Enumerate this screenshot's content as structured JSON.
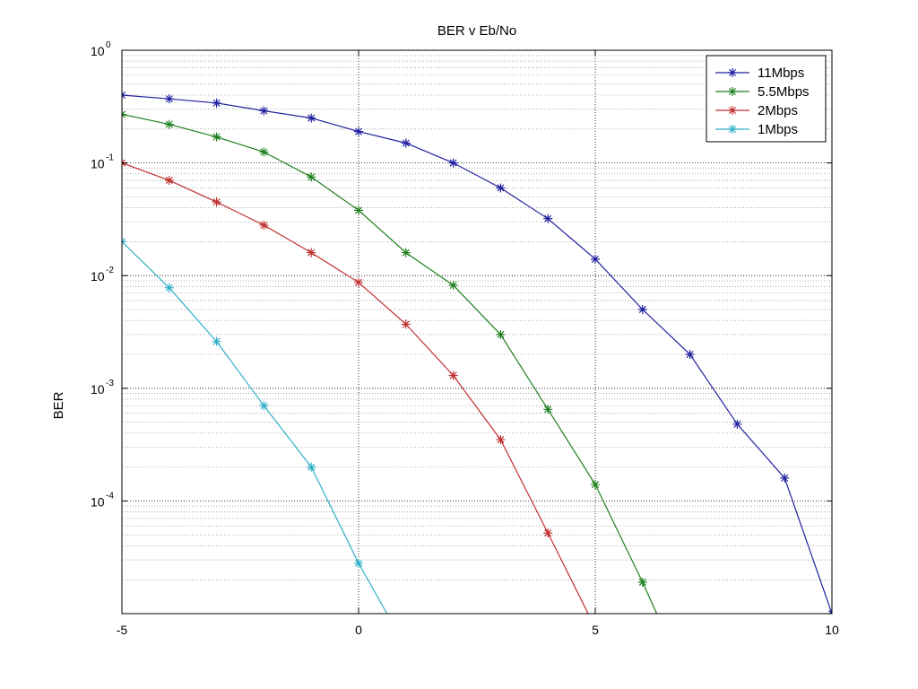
{
  "chart_data": {
    "type": "line",
    "title": "BER v Eb/No",
    "xlabel": "",
    "ylabel": "BER",
    "x_scale": "linear",
    "y_scale": "log",
    "xlim": [
      -5,
      10
    ],
    "ylim": [
      1e-05,
      1
    ],
    "xticks": [
      {
        "value": -5,
        "label": "-5"
      },
      {
        "value": 0,
        "label": "0"
      },
      {
        "value": 5,
        "label": "5"
      },
      {
        "value": 10,
        "label": "10"
      }
    ],
    "yticks": [
      {
        "value": 1,
        "base": "10",
        "exp": "0"
      },
      {
        "value": 0.1,
        "base": "10",
        "exp": "-1"
      },
      {
        "value": 0.01,
        "base": "10",
        "exp": "-2"
      },
      {
        "value": 0.001,
        "base": "10",
        "exp": "-3"
      },
      {
        "value": 0.0001,
        "base": "10",
        "exp": "-4"
      }
    ],
    "grid": true,
    "legend_position": "top-right",
    "series": [
      {
        "name": "11Mbps",
        "color": "#2020a0",
        "x": [
          -5,
          -4,
          -3,
          -2,
          -1,
          0,
          1,
          2,
          3,
          4,
          5,
          6,
          7,
          8,
          9,
          10
        ],
        "y": [
          0.4,
          0.37,
          0.34,
          0.29,
          0.25,
          0.19,
          0.15,
          0.1,
          0.06,
          0.032,
          0.014,
          0.005,
          0.002,
          0.00048,
          0.00016,
          1e-05
        ]
      },
      {
        "name": "5.5Mbps",
        "color": "#208020",
        "x": [
          -5,
          -4,
          -3,
          -2,
          -1,
          0,
          1,
          2,
          3,
          4,
          5,
          6,
          6.3
        ],
        "y": [
          0.27,
          0.22,
          0.17,
          0.125,
          0.075,
          0.038,
          0.016,
          0.0082,
          0.003,
          0.00065,
          0.00014,
          1.9e-05,
          1e-05
        ]
      },
      {
        "name": "2Mbps",
        "color": "#c03030",
        "x": [
          -5,
          -4,
          -3,
          -2,
          -1,
          0,
          1,
          2,
          3,
          4,
          4.85
        ],
        "y": [
          0.1,
          0.07,
          0.045,
          0.028,
          0.016,
          0.0087,
          0.0037,
          0.0013,
          0.00035,
          5.2e-05,
          1e-05
        ]
      },
      {
        "name": "1Mbps",
        "color": "#30b0c8",
        "x": [
          -5,
          -4,
          -3,
          -2,
          -1,
          0,
          0.6
        ],
        "y": [
          0.02,
          0.0078,
          0.0026,
          0.0007,
          0.0002,
          2.8e-05,
          1e-05
        ]
      }
    ],
    "marker_points": [
      16,
      12,
      10,
      6
    ]
  }
}
